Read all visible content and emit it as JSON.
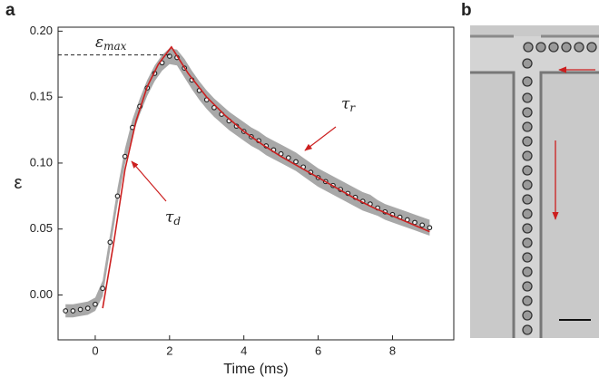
{
  "chart_data": {
    "type": "scatter",
    "panel_labels": [
      "a",
      "b"
    ],
    "xlabel": "Time (ms)",
    "ylabel": "ε",
    "xlim": [
      -1,
      9.65
    ],
    "ylim": [
      -0.034,
      0.203
    ],
    "xticks": [
      0,
      2,
      4,
      6,
      8
    ],
    "yticks": [
      {
        "value": 0,
        "label": "0.00"
      },
      {
        "value": 0.05,
        "label": "0.05"
      },
      {
        "value": 0.1,
        "label": "0.10"
      },
      {
        "value": 0.15,
        "label": "0.15"
      },
      {
        "value": 0.2,
        "label": "0.20"
      }
    ],
    "series": [
      {
        "type": "scatter",
        "color": "#222222",
        "band_color": "#a8a8a8",
        "x": [
          -0.8,
          -0.6,
          -0.4,
          -0.2,
          0,
          0.2,
          0.4,
          0.6,
          0.8,
          1.0,
          1.2,
          1.4,
          1.6,
          1.8,
          2.0,
          2.2,
          2.4,
          2.6,
          2.8,
          3.0,
          3.2,
          3.4,
          3.6,
          3.8,
          4.0,
          4.2,
          4.4,
          4.6,
          4.8,
          5.0,
          5.2,
          5.4,
          5.6,
          5.8,
          6.0,
          6.2,
          6.4,
          6.6,
          6.8,
          7.0,
          7.2,
          7.4,
          7.6,
          7.8,
          8.0,
          8.2,
          8.4,
          8.6,
          8.8,
          9.0
        ],
        "values": [
          -0.012,
          -0.012,
          -0.011,
          -0.01,
          -0.007,
          0.005,
          0.04,
          0.075,
          0.105,
          0.127,
          0.143,
          0.157,
          0.168,
          0.176,
          0.181,
          0.18,
          0.172,
          0.163,
          0.155,
          0.148,
          0.142,
          0.137,
          0.132,
          0.128,
          0.124,
          0.12,
          0.117,
          0.113,
          0.11,
          0.107,
          0.104,
          0.101,
          0.097,
          0.093,
          0.089,
          0.086,
          0.083,
          0.08,
          0.077,
          0.074,
          0.071,
          0.069,
          0.066,
          0.063,
          0.061,
          0.059,
          0.057,
          0.055,
          0.053,
          0.051
        ],
        "errors": [
          0.005,
          0.005,
          0.005,
          0.005,
          0.005,
          0.006,
          0.006,
          0.006,
          0.006,
          0.006,
          0.006,
          0.006,
          0.006,
          0.006,
          0.006,
          0.006,
          0.007,
          0.007,
          0.007,
          0.007,
          0.007,
          0.007,
          0.007,
          0.007,
          0.007,
          0.007,
          0.007,
          0.007,
          0.007,
          0.007,
          0.007,
          0.007,
          0.007,
          0.007,
          0.007,
          0.007,
          0.007,
          0.007,
          0.007,
          0.007,
          0.007,
          0.007,
          0.006,
          0.006,
          0.006,
          0.006,
          0.006,
          0.006,
          0.006,
          0.006
        ]
      },
      {
        "type": "line",
        "color": "#cc1f1f",
        "x": [
          0.2,
          0.5,
          0.8,
          1.1,
          1.4,
          1.7,
          2.05,
          2.5,
          3,
          3.5,
          4,
          4.5,
          5,
          5.5,
          6,
          6.5,
          7,
          7.5,
          8,
          8.5,
          9
        ],
        "values": [
          -0.01,
          0.04,
          0.095,
          0.132,
          0.158,
          0.175,
          0.188,
          0.168,
          0.15,
          0.136,
          0.124,
          0.114,
          0.105,
          0.097,
          0.089,
          0.081,
          0.073,
          0.066,
          0.06,
          0.054,
          0.048
        ]
      }
    ],
    "annotations": [
      {
        "symbol": "ε",
        "subscript": "max",
        "value": 0.182
      },
      {
        "symbol": "τ",
        "subscript": "r"
      },
      {
        "symbol": "τ",
        "subscript": "d"
      }
    ]
  }
}
